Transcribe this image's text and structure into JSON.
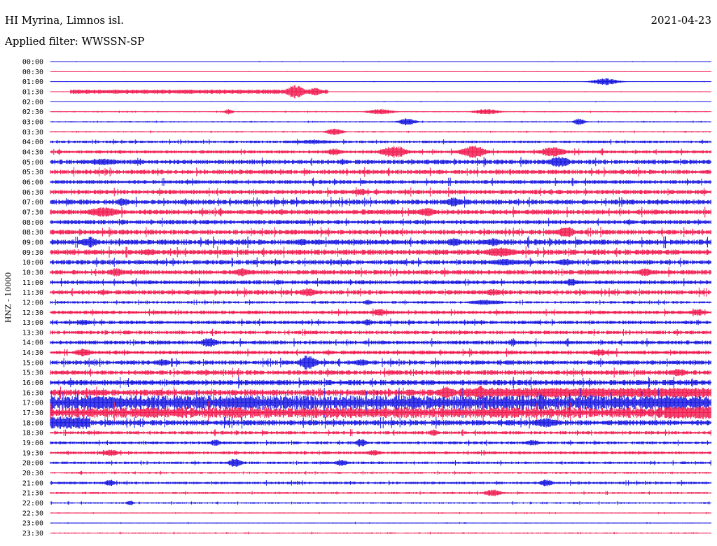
{
  "header": {
    "station": "HI Myrina, Limnos isl.",
    "date": "2021-04-23",
    "filter": "Applied filter: WWSSN-SP"
  },
  "axis": {
    "ylabel": "HNZ - 10000"
  },
  "colors": {
    "even": "#1010e0",
    "odd": "#f0144b"
  },
  "chart_data": {
    "type": "line",
    "title": "",
    "ylabel": "HNZ - 10000",
    "row_interval_minutes": 30,
    "rows": [
      {
        "time": "00:00",
        "base": 0.3,
        "events": []
      },
      {
        "time": "00:30",
        "base": 0.2,
        "events": []
      },
      {
        "time": "01:00",
        "base": 0.3,
        "events": [
          {
            "at": 0.84,
            "amp": 5,
            "width": 0.015
          }
        ]
      },
      {
        "time": "01:30",
        "base": 0.3,
        "events": [
          {
            "at": 0.03,
            "amp": 3,
            "width": 0.0,
            "end": 0.42
          },
          {
            "at": 0.37,
            "amp": 10,
            "width": 0.01
          },
          {
            "at": 0.4,
            "amp": 6,
            "width": 0.008
          }
        ]
      },
      {
        "time": "02:00",
        "base": 0.3,
        "events": []
      },
      {
        "time": "02:30",
        "base": 0.6,
        "events": [
          {
            "at": 0.27,
            "amp": 4,
            "width": 0.005
          },
          {
            "at": 0.5,
            "amp": 4,
            "width": 0.015
          },
          {
            "at": 0.66,
            "amp": 4,
            "width": 0.015
          }
        ]
      },
      {
        "time": "03:00",
        "base": 0.6,
        "events": [
          {
            "at": 0.54,
            "amp": 5,
            "width": 0.01
          },
          {
            "at": 0.8,
            "amp": 5,
            "width": 0.006
          }
        ]
      },
      {
        "time": "03:30",
        "base": 0.7,
        "events": [
          {
            "at": 0.43,
            "amp": 5,
            "width": 0.01
          }
        ]
      },
      {
        "time": "04:00",
        "base": 1.4,
        "events": [
          {
            "at": 0.4,
            "amp": 3,
            "width": 0.03
          }
        ]
      },
      {
        "time": "04:30",
        "base": 1.8,
        "events": [
          {
            "at": 0.52,
            "amp": 9,
            "width": 0.015
          },
          {
            "at": 0.64,
            "amp": 9,
            "width": 0.015
          },
          {
            "at": 0.76,
            "amp": 7,
            "width": 0.015
          },
          {
            "at": 0.43,
            "amp": 5,
            "width": 0.01
          }
        ]
      },
      {
        "time": "05:00",
        "base": 2.5,
        "events": [
          {
            "at": 0.77,
            "amp": 8,
            "width": 0.012
          },
          {
            "at": 0.08,
            "amp": 5,
            "width": 0.02
          }
        ]
      },
      {
        "time": "05:30",
        "base": 2.5,
        "events": []
      },
      {
        "time": "06:00",
        "base": 2.2,
        "events": []
      },
      {
        "time": "06:30",
        "base": 2.4,
        "events": [
          {
            "at": 0.47,
            "amp": 5,
            "width": 0.01
          }
        ]
      },
      {
        "time": "07:00",
        "base": 2.8,
        "events": [
          {
            "at": 0.11,
            "amp": 6,
            "width": 0.008
          },
          {
            "at": 0.61,
            "amp": 7,
            "width": 0.01
          }
        ]
      },
      {
        "time": "07:30",
        "base": 2.8,
        "events": [
          {
            "at": 0.08,
            "amp": 7,
            "width": 0.02
          },
          {
            "at": 0.57,
            "amp": 6,
            "width": 0.012
          }
        ]
      },
      {
        "time": "08:00",
        "base": 2.4,
        "events": []
      },
      {
        "time": "08:30",
        "base": 2.6,
        "events": [
          {
            "at": 0.78,
            "amp": 9,
            "width": 0.01
          }
        ]
      },
      {
        "time": "09:00",
        "base": 3.0,
        "events": [
          {
            "at": 0.06,
            "amp": 8,
            "width": 0.01
          },
          {
            "at": 0.61,
            "amp": 7,
            "width": 0.008
          },
          {
            "at": 0.67,
            "amp": 6,
            "width": 0.01
          },
          {
            "at": 0.38,
            "amp": 5,
            "width": 0.01
          }
        ]
      },
      {
        "time": "09:30",
        "base": 3.0,
        "events": [
          {
            "at": 0.68,
            "amp": 7,
            "width": 0.02
          },
          {
            "at": 0.15,
            "amp": 5,
            "width": 0.01
          }
        ]
      },
      {
        "time": "10:00",
        "base": 2.5,
        "events": [
          {
            "at": 0.69,
            "amp": 5,
            "width": 0.02
          },
          {
            "at": 0.78,
            "amp": 5,
            "width": 0.01
          }
        ]
      },
      {
        "time": "10:30",
        "base": 2.6,
        "events": [
          {
            "at": 0.1,
            "amp": 6,
            "width": 0.01
          },
          {
            "at": 0.29,
            "amp": 6,
            "width": 0.01
          },
          {
            "at": 0.9,
            "amp": 6,
            "width": 0.01
          }
        ]
      },
      {
        "time": "11:00",
        "base": 2.3,
        "events": [
          {
            "at": 0.79,
            "amp": 5,
            "width": 0.01
          }
        ]
      },
      {
        "time": "11:30",
        "base": 2.5,
        "events": [
          {
            "at": 0.39,
            "amp": 6,
            "width": 0.01
          },
          {
            "at": 0.67,
            "amp": 5,
            "width": 0.01
          }
        ]
      },
      {
        "time": "12:00",
        "base": 1.4,
        "events": [
          {
            "at": 0.48,
            "amp": 4,
            "width": 0.005
          },
          {
            "at": 0.66,
            "amp": 4,
            "width": 0.02
          }
        ]
      },
      {
        "time": "12:30",
        "base": 2.0,
        "events": [
          {
            "at": 0.5,
            "amp": 5,
            "width": 0.01
          },
          {
            "at": 0.98,
            "amp": 5,
            "width": 0.01
          }
        ]
      },
      {
        "time": "13:00",
        "base": 2.0,
        "events": [
          {
            "at": 0.05,
            "amp": 4,
            "width": 0.01
          },
          {
            "at": 0.48,
            "amp": 5,
            "width": 0.006
          }
        ]
      },
      {
        "time": "13:30",
        "base": 2.0,
        "events": []
      },
      {
        "time": "14:00",
        "base": 2.2,
        "events": [
          {
            "at": 0.24,
            "amp": 7,
            "width": 0.01
          },
          {
            "at": 0.7,
            "amp": 6,
            "width": 0.004
          }
        ]
      },
      {
        "time": "14:30",
        "base": 2.2,
        "events": [
          {
            "at": 0.05,
            "amp": 6,
            "width": 0.01
          },
          {
            "at": 0.83,
            "amp": 5,
            "width": 0.01
          }
        ]
      },
      {
        "time": "15:00",
        "base": 2.4,
        "events": [
          {
            "at": 0.39,
            "amp": 11,
            "width": 0.01
          },
          {
            "at": 0.47,
            "amp": 5,
            "width": 0.01
          },
          {
            "at": 0.17,
            "amp": 5,
            "width": 0.01
          }
        ]
      },
      {
        "time": "15:30",
        "base": 2.6,
        "events": [
          {
            "at": 0.95,
            "amp": 6,
            "width": 0.01
          }
        ]
      },
      {
        "time": "16:00",
        "base": 3.0,
        "events": []
      },
      {
        "time": "16:30",
        "base": 3.5,
        "events": [
          {
            "at": 0.6,
            "amp": 9,
            "width": 0.01
          },
          {
            "at": 0.62,
            "amp": 7,
            "width": 0.0,
            "end": 1.0
          },
          {
            "at": 0.65,
            "amp": 11,
            "width": 0.006
          }
        ]
      },
      {
        "time": "17:00",
        "base": 8.0,
        "events": [
          {
            "at": 0.08,
            "amp": 9,
            "width": 0.03
          },
          {
            "at": 0.29,
            "amp": 9,
            "width": 0.03
          },
          {
            "at": 0.93,
            "amp": 8,
            "width": 0.03
          }
        ]
      },
      {
        "time": "17:30",
        "base": 6.0,
        "events": [
          {
            "at": 0.93,
            "amp": 9,
            "width": 0.0,
            "end": 1.0
          },
          {
            "at": 0.15,
            "amp": 8,
            "width": 0.02
          }
        ]
      },
      {
        "time": "18:00",
        "base": 3.0,
        "events": [
          {
            "at": 0.0,
            "amp": 9,
            "width": 0.0,
            "end": 0.06
          },
          {
            "at": 0.75,
            "amp": 7,
            "width": 0.015
          }
        ]
      },
      {
        "time": "18:30",
        "base": 1.8,
        "events": [
          {
            "at": 0.58,
            "amp": 5,
            "width": 0.006
          }
        ]
      },
      {
        "time": "19:00",
        "base": 1.6,
        "events": [
          {
            "at": 0.25,
            "amp": 5,
            "width": 0.006
          },
          {
            "at": 0.47,
            "amp": 6,
            "width": 0.006
          },
          {
            "at": 0.73,
            "amp": 4,
            "width": 0.01
          }
        ]
      },
      {
        "time": "19:30",
        "base": 1.6,
        "events": [
          {
            "at": 0.09,
            "amp": 5,
            "width": 0.01
          },
          {
            "at": 0.49,
            "amp": 4,
            "width": 0.01
          }
        ]
      },
      {
        "time": "20:00",
        "base": 1.4,
        "events": [
          {
            "at": 0.28,
            "amp": 7,
            "width": 0.008
          },
          {
            "at": 0.44,
            "amp": 5,
            "width": 0.008
          }
        ]
      },
      {
        "time": "20:30",
        "base": 1.0,
        "events": []
      },
      {
        "time": "21:00",
        "base": 1.4,
        "events": [
          {
            "at": 0.09,
            "amp": 5,
            "width": 0.006
          },
          {
            "at": 0.75,
            "amp": 5,
            "width": 0.008
          }
        ]
      },
      {
        "time": "21:30",
        "base": 1.0,
        "events": [
          {
            "at": 0.67,
            "amp": 5,
            "width": 0.01
          }
        ]
      },
      {
        "time": "22:00",
        "base": 0.9,
        "events": [
          {
            "at": 0.12,
            "amp": 4,
            "width": 0.004
          }
        ]
      },
      {
        "time": "22:30",
        "base": 0.5,
        "events": []
      },
      {
        "time": "23:00",
        "base": 0.5,
        "events": []
      },
      {
        "time": "23:30",
        "base": 0.7,
        "events": []
      }
    ]
  }
}
